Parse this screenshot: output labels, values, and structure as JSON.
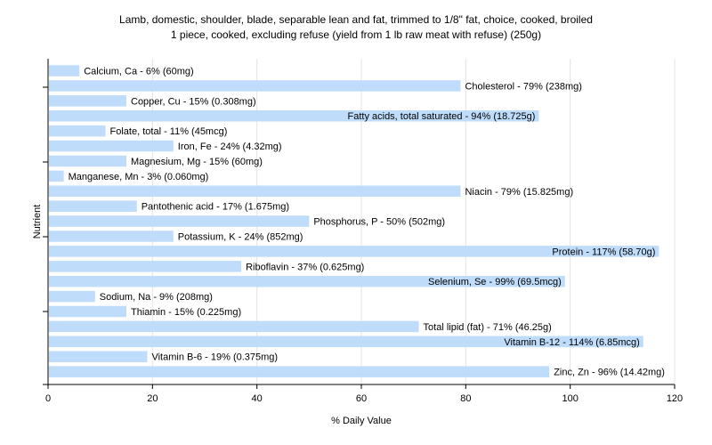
{
  "chart_data": {
    "type": "bar",
    "orientation": "horizontal",
    "title_lines": [
      "Lamb, domestic, shoulder, blade, separable lean and fat, trimmed to 1/8\" fat, choice, cooked, broiled",
      "1 piece, cooked, excluding refuse (yield from 1 lb raw meat with refuse) (250g)"
    ],
    "xlabel": "% Daily Value",
    "ylabel": "Nutrient",
    "xlim": [
      0,
      120
    ],
    "xticks": [
      0,
      20,
      40,
      60,
      80,
      100,
      120
    ],
    "grid": true,
    "bar_color": "#bfdcfa",
    "categories": [
      "Calcium, Ca",
      "Cholesterol",
      "Copper, Cu",
      "Fatty acids, total saturated",
      "Folate, total",
      "Iron, Fe",
      "Magnesium, Mg",
      "Manganese, Mn",
      "Niacin",
      "Pantothenic acid",
      "Phosphorus, P",
      "Potassium, K",
      "Protein",
      "Riboflavin",
      "Selenium, Se",
      "Sodium, Na",
      "Thiamin",
      "Total lipid (fat)",
      "Vitamin B-12",
      "Vitamin B-6",
      "Zinc, Zn"
    ],
    "values": [
      6,
      79,
      15,
      94,
      11,
      24,
      15,
      3,
      79,
      17,
      50,
      24,
      117,
      37,
      99,
      9,
      15,
      71,
      114,
      19,
      96
    ],
    "labels": [
      "Calcium, Ca - 6% (60mg)",
      "Cholesterol - 79% (238mg)",
      "Copper, Cu - 15% (0.308mg)",
      "Fatty acids, total saturated - 94% (18.725g)",
      "Folate, total - 11% (45mcg)",
      "Iron, Fe - 24% (4.32mg)",
      "Magnesium, Mg - 15% (60mg)",
      "Manganese, Mn - 3% (0.060mg)",
      "Niacin - 79% (15.825mg)",
      "Pantothenic acid - 17% (1.675mg)",
      "Phosphorus, P - 50% (502mg)",
      "Potassium, K - 24% (852mg)",
      "Protein - 117% (58.70g)",
      "Riboflavin - 37% (0.625mg)",
      "Selenium, Se - 99% (69.5mcg)",
      "Sodium, Na - 9% (208mg)",
      "Thiamin - 15% (0.225mg)",
      "Total lipid (fat) - 71% (46.25g)",
      "Vitamin B-12 - 114% (6.85mcg)",
      "Vitamin B-6 - 19% (0.375mg)",
      "Zinc, Zn - 96% (14.42mg)"
    ]
  }
}
